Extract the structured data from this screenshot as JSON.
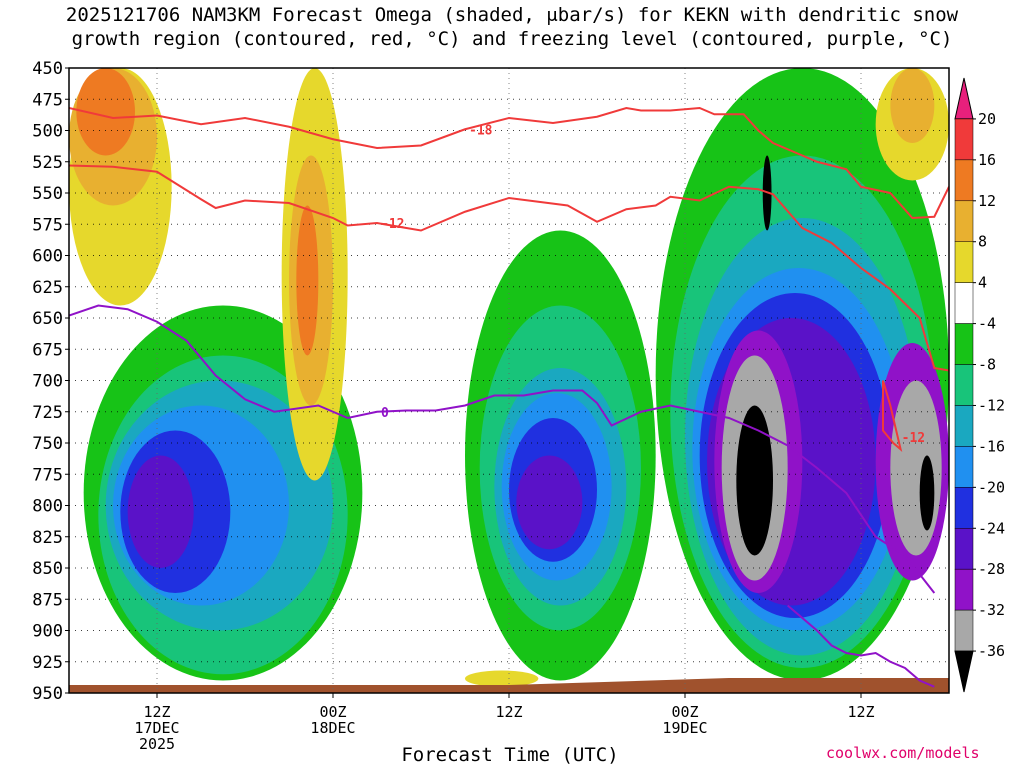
{
  "title_line1": "2025121706 NAM3KM Forecast Omega (shaded, μbar/s) for KEKN with dendritic snow",
  "title_line2": "growth region (contoured, red, °C) and freezing level (contoured, purple, °C)",
  "xlabel": "Forecast Time (UTC)",
  "credit": "coolwx.com/models",
  "chart_data": {
    "type": "heatmap",
    "x_ticks": [
      {
        "hour": 6,
        "lines": [
          "12Z",
          "17DEC",
          "2025"
        ]
      },
      {
        "hour": 18,
        "lines": [
          "00Z",
          "18DEC"
        ]
      },
      {
        "hour": 30,
        "lines": [
          "12Z"
        ]
      },
      {
        "hour": 42,
        "lines": [
          "00Z",
          "19DEC"
        ]
      },
      {
        "hour": 54,
        "lines": [
          "12Z"
        ]
      }
    ],
    "x_range": [
      0,
      60
    ],
    "y_ticks": [
      450,
      475,
      500,
      525,
      550,
      575,
      600,
      625,
      650,
      675,
      700,
      725,
      750,
      775,
      800,
      825,
      850,
      875,
      900,
      925,
      950
    ],
    "y_range": [
      450,
      950
    ],
    "colorbar": {
      "labels": [
        "20",
        "16",
        "12",
        "8",
        "4",
        "-4",
        "-8",
        "-12",
        "-16",
        "-20",
        "-24",
        "-28",
        "-32",
        "-36"
      ],
      "colors": [
        "#e8207c",
        "#f03a3a",
        "#ee7a22",
        "#e8b030",
        "#e6d82c",
        "#ffffff",
        "#17c317",
        "#18c47a",
        "#1aa8c0",
        "#2090f0",
        "#2030e0",
        "#5a12c8",
        "#9012c8",
        "#a8a8a8",
        "#000000"
      ]
    },
    "omega_regions": [
      {
        "color": "#e6d82c",
        "x": [
          0,
          7
        ],
        "p": [
          450,
          640
        ]
      },
      {
        "color": "#e8b030",
        "x": [
          0,
          6
        ],
        "p": [
          450,
          560
        ]
      },
      {
        "color": "#ee7a22",
        "x": [
          0.5,
          4.5
        ],
        "p": [
          450,
          520
        ]
      },
      {
        "color": "#17c317",
        "x": [
          1,
          20
        ],
        "p": [
          640,
          940
        ]
      },
      {
        "color": "#18c47a",
        "x": [
          2,
          19
        ],
        "p": [
          680,
          935
        ]
      },
      {
        "color": "#1aa8c0",
        "x": [
          2.5,
          18
        ],
        "p": [
          700,
          900
        ]
      },
      {
        "color": "#2090f0",
        "x": [
          3,
          15
        ],
        "p": [
          720,
          880
        ]
      },
      {
        "color": "#2030e0",
        "x": [
          3.5,
          11
        ],
        "p": [
          740,
          870
        ]
      },
      {
        "color": "#5a12c8",
        "x": [
          4,
          8.5
        ],
        "p": [
          760,
          850
        ]
      },
      {
        "color": "#e6d82c",
        "x": [
          14.5,
          19
        ],
        "p": [
          450,
          780
        ]
      },
      {
        "color": "#e8b030",
        "x": [
          15,
          18
        ],
        "p": [
          520,
          720
        ]
      },
      {
        "color": "#ee7a22",
        "x": [
          15.5,
          17
        ],
        "p": [
          560,
          680
        ]
      },
      {
        "color": "#17c317",
        "x": [
          27,
          40
        ],
        "p": [
          580,
          940
        ]
      },
      {
        "color": "#18c47a",
        "x": [
          28,
          39
        ],
        "p": [
          640,
          900
        ]
      },
      {
        "color": "#1aa8c0",
        "x": [
          29,
          38
        ],
        "p": [
          690,
          880
        ]
      },
      {
        "color": "#2090f0",
        "x": [
          29.5,
          37
        ],
        "p": [
          710,
          860
        ]
      },
      {
        "color": "#2030e0",
        "x": [
          30,
          36
        ],
        "p": [
          730,
          845
        ]
      },
      {
        "color": "#5a12c8",
        "x": [
          30.5,
          35
        ],
        "p": [
          760,
          835
        ]
      },
      {
        "color": "#17c317",
        "x": [
          40,
          60
        ],
        "p": [
          450,
          940
        ]
      },
      {
        "color": "#18c47a",
        "x": [
          41,
          59
        ],
        "p": [
          520,
          930
        ]
      },
      {
        "color": "#1aa8c0",
        "x": [
          42,
          58
        ],
        "p": [
          570,
          920
        ]
      },
      {
        "color": "#2090f0",
        "x": [
          42.5,
          57
        ],
        "p": [
          610,
          900
        ]
      },
      {
        "color": "#2030e0",
        "x": [
          43,
          56
        ],
        "p": [
          630,
          890
        ]
      },
      {
        "color": "#5a12c8",
        "x": [
          43.5,
          55
        ],
        "p": [
          650,
          880
        ]
      },
      {
        "color": "#9012c8",
        "x": [
          44,
          50
        ],
        "p": [
          660,
          870
        ]
      },
      {
        "color": "#a8a8a8",
        "x": [
          44.5,
          49
        ],
        "p": [
          680,
          860
        ]
      },
      {
        "color": "#000000",
        "x": [
          45.5,
          48
        ],
        "p": [
          720,
          840
        ]
      },
      {
        "color": "#000000",
        "x": [
          47.3,
          47.9
        ],
        "p": [
          520,
          580
        ]
      },
      {
        "color": "#9012c8",
        "x": [
          55,
          60
        ],
        "p": [
          670,
          860
        ]
      },
      {
        "color": "#a8a8a8",
        "x": [
          56,
          59.5
        ],
        "p": [
          700,
          840
        ]
      },
      {
        "color": "#000000",
        "x": [
          58,
          59
        ],
        "p": [
          760,
          820
        ]
      },
      {
        "color": "#e6d82c",
        "x": [
          55,
          60
        ],
        "p": [
          450,
          540
        ]
      },
      {
        "color": "#e8b030",
        "x": [
          56,
          59
        ],
        "p": [
          450,
          510
        ]
      },
      {
        "color": "#e6d82c",
        "x": [
          27,
          32
        ],
        "p": [
          932,
          945
        ]
      }
    ],
    "dgz_contours": [
      {
        "label": "-18",
        "x": [
          0,
          3,
          6,
          9,
          12,
          15,
          18,
          21,
          24,
          27,
          30,
          33,
          36,
          38,
          39,
          41,
          43,
          44,
          46,
          47,
          48,
          50,
          51,
          53,
          54,
          56,
          57.5,
          59,
          60
        ],
        "p": [
          482,
          490,
          488,
          495,
          490,
          497,
          507,
          514,
          512,
          499,
          490,
          494,
          489,
          482,
          484,
          484,
          482,
          487,
          487,
          500,
          510,
          520,
          525,
          531,
          545,
          550,
          570,
          569,
          545
        ]
      },
      {
        "label": "-12",
        "x": [
          0,
          3,
          6,
          9,
          10,
          12,
          15,
          18,
          19,
          21,
          24,
          27,
          30,
          32,
          34,
          36,
          38,
          40,
          41,
          43,
          45,
          47,
          48,
          50,
          52,
          54,
          56,
          58,
          59,
          60
        ],
        "p": [
          528,
          529,
          533,
          555,
          562,
          556,
          558,
          570,
          576,
          574,
          580,
          565,
          554,
          557,
          560,
          573,
          563,
          560,
          553,
          556,
          545,
          547,
          551,
          578,
          590,
          610,
          627,
          650,
          690,
          692
        ]
      },
      {
        "label": "-12",
        "x": [
          55.5,
          56,
          56.5,
          56.7,
          56.2,
          55.5,
          55.5
        ],
        "p": [
          700,
          720,
          745,
          755,
          750,
          740,
          700
        ]
      }
    ],
    "freezing_contours": [
      {
        "label": "0",
        "x": [
          0,
          2,
          4,
          6,
          8,
          10,
          12,
          14,
          17,
          19,
          21,
          23,
          25,
          27,
          29,
          31,
          33,
          35,
          36,
          37,
          39,
          41,
          43,
          45,
          47,
          49,
          51,
          53,
          55,
          57,
          59
        ],
        "p": [
          648,
          640,
          643,
          653,
          668,
          696,
          715,
          725,
          720,
          730,
          725,
          724,
          724,
          720,
          712,
          712,
          708,
          708,
          718,
          736,
          725,
          720,
          725,
          730,
          740,
          752,
          770,
          790,
          825,
          840,
          870
        ]
      },
      {
        "label": "",
        "x": [
          49,
          50,
          51,
          52,
          53,
          54,
          55,
          56,
          57,
          58,
          59
        ],
        "p": [
          880,
          890,
          900,
          912,
          918,
          920,
          918,
          925,
          930,
          940,
          945
        ]
      }
    ],
    "terrain_top_hpa_at_end": 938
  }
}
